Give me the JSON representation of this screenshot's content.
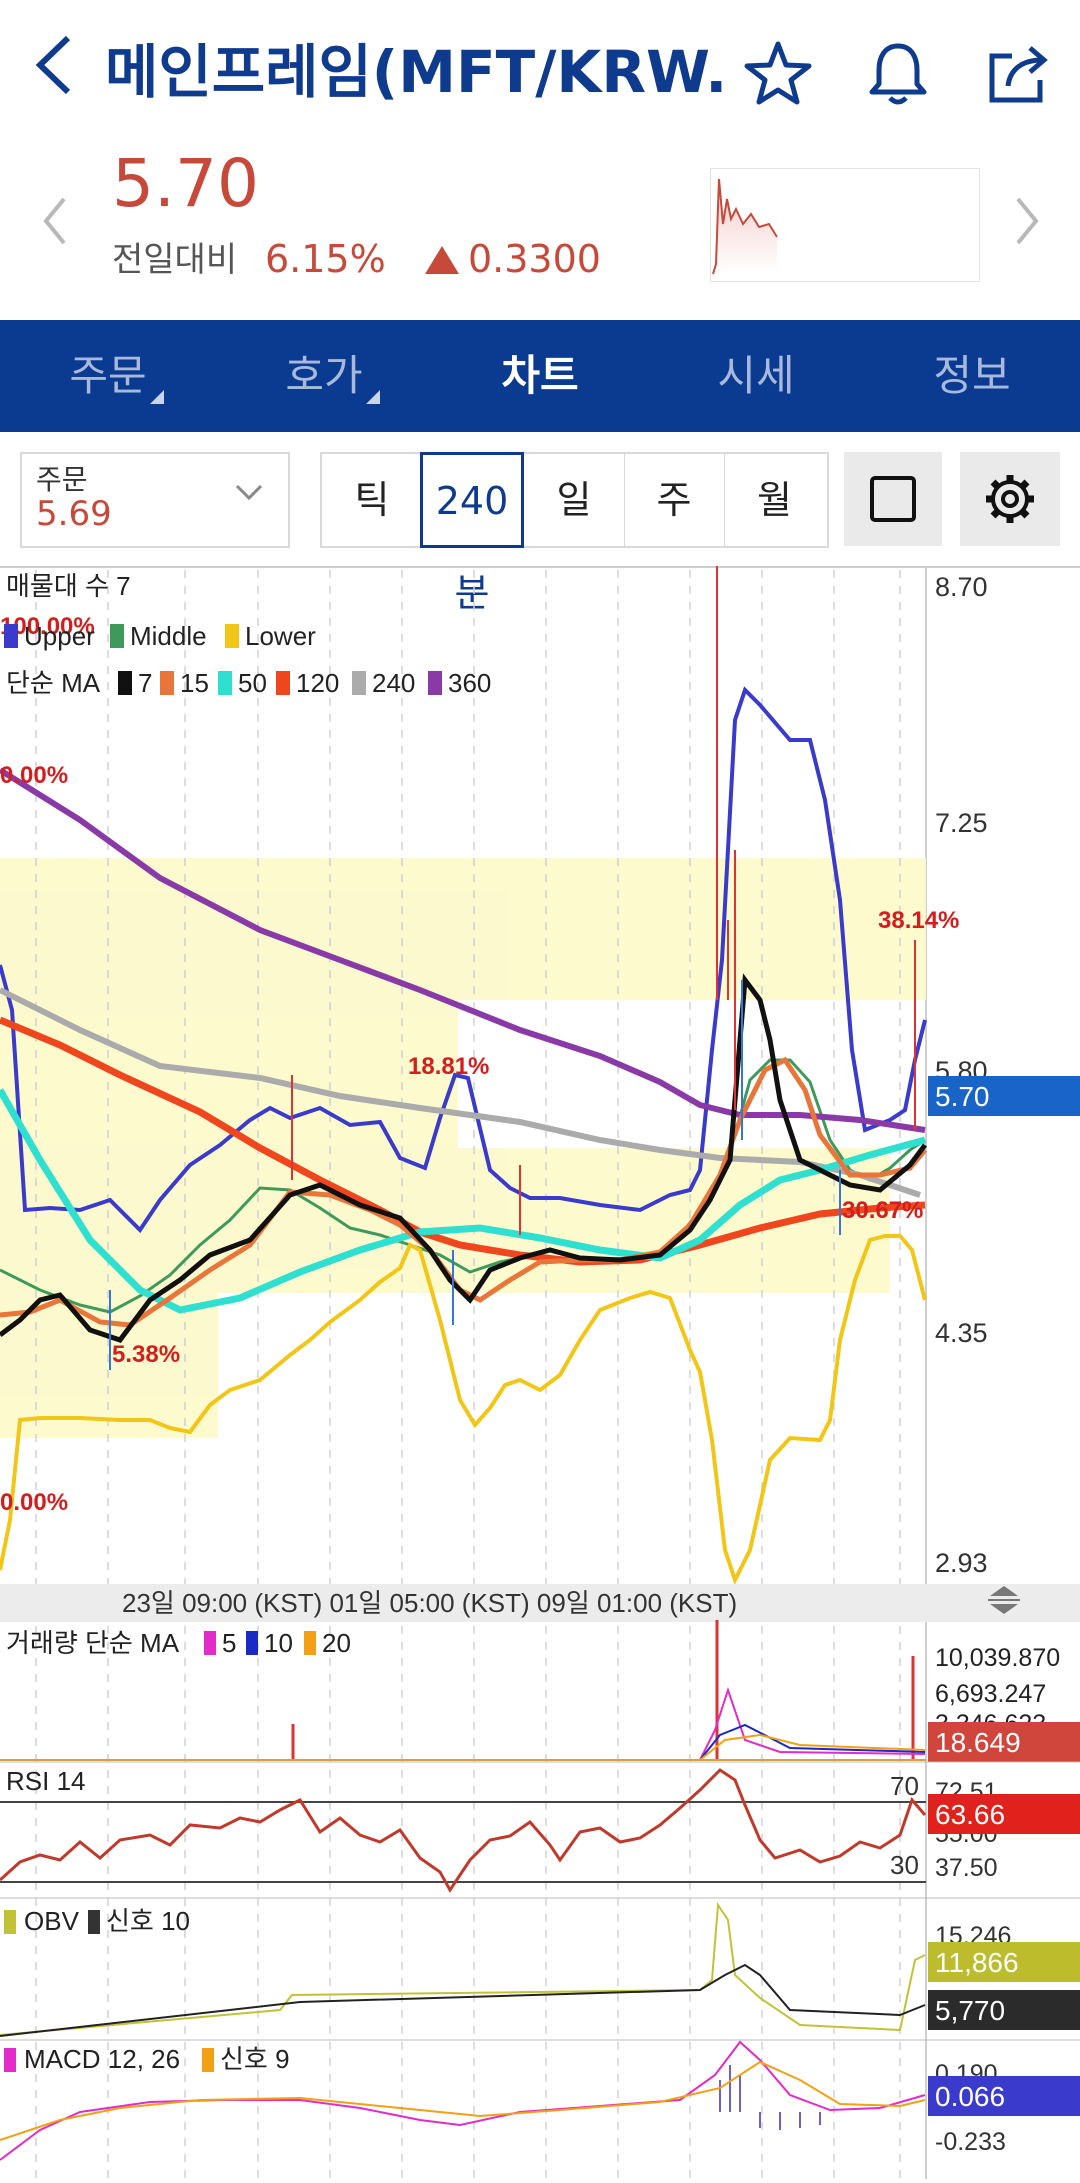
{
  "header": {
    "title": "메인프레임(MFT/KRW...",
    "icons": [
      "back-icon",
      "star-icon",
      "bell-icon",
      "share-icon"
    ]
  },
  "quote": {
    "price": "5.70",
    "prev_label": "전일대비",
    "change_pct": "6.15%",
    "change_abs": "0.3300",
    "color_up": "#c7493a"
  },
  "tabs": [
    {
      "label": "주문"
    },
    {
      "label": "호가"
    },
    {
      "label": "차트"
    },
    {
      "label": "시세"
    },
    {
      "label": "정보"
    }
  ],
  "order": {
    "label": "주문",
    "value": "5.69"
  },
  "periods": [
    "틱",
    "240분",
    "일",
    "주",
    "월"
  ],
  "chart": {
    "volume_profile_label": "매물대 수 7",
    "bb_legend": [
      "Upper",
      "Middle",
      "Lower"
    ],
    "ma_legend_title": "단순 MA",
    "ma_legend": [
      "7",
      "15",
      "50",
      "120",
      "240",
      "360"
    ],
    "price_axis": [
      "8.70",
      "7.25",
      "5.80",
      "4.35",
      "2.93"
    ],
    "current_price_tag": "5.70",
    "pct_labels": [
      "100.00%",
      "0.00%",
      "18.81%",
      "38.14%",
      "30.67%",
      "5.38%",
      "0.00%"
    ],
    "time_axis": "23일 09:00 (KST) 01일 05:00 (KST) 09일 01:00 (KST)",
    "volume": {
      "label": "거래량 단순 MA",
      "legend": [
        "5",
        "10",
        "20"
      ],
      "axis": [
        "10,039.870",
        "6,693.247",
        "3,346.623"
      ],
      "tag": "18.649"
    },
    "rsi": {
      "label": "RSI 14",
      "level_hi": "70",
      "level_lo": "30",
      "axis": [
        "72.51",
        "55.00",
        "37.50"
      ],
      "tag": "63.66"
    },
    "obv": {
      "label": "OBV",
      "signal": "신호 10",
      "axis": "15,246",
      "tag1": "11,866",
      "tag2": "5,770"
    },
    "macd": {
      "label": "MACD 12, 26",
      "signal": "신호 9",
      "axis_hi": "0.190",
      "axis_lo": "-0.233",
      "tag": "0.066"
    }
  }
}
